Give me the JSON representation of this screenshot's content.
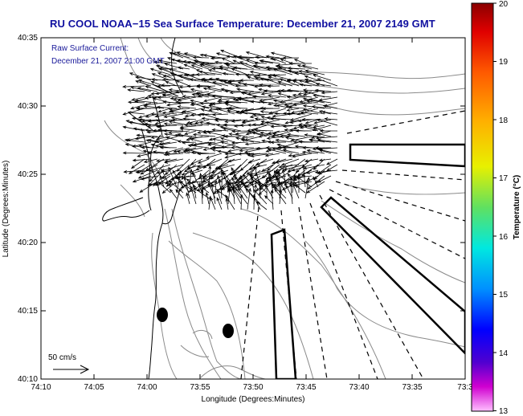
{
  "title": "RU COOL  NOAA−15  Sea Surface Temperature:  December 21, 2007 2149 GMT",
  "annotation": {
    "line1": "Raw Surface Current:",
    "line2": "December 21, 2007 21:00 GMT"
  },
  "scale_label": "50 cm/s",
  "xlabel": "Longitude (Degrees:Minutes)",
  "ylabel": "Latitude (Degrees:Minutes)",
  "x_ticks": [
    "74:10",
    "74:05",
    "74:00",
    "73:55",
    "73:50",
    "73:45",
    "73:40",
    "73:35",
    "73:3"
  ],
  "y_ticks": [
    "40:35",
    "40:30",
    "40:25",
    "40:20",
    "40:15",
    "40:10"
  ],
  "colorbar": {
    "label": "Temperature (°C)",
    "ticks": [
      "20",
      "19",
      "18",
      "17",
      "16",
      "15",
      "14",
      "13"
    ],
    "range": [
      13,
      20
    ]
  },
  "colors": {
    "title": "#1010a0",
    "annotation": "#1a1a9a",
    "contour": "#8a8a8a",
    "coast": "#000000"
  }
}
